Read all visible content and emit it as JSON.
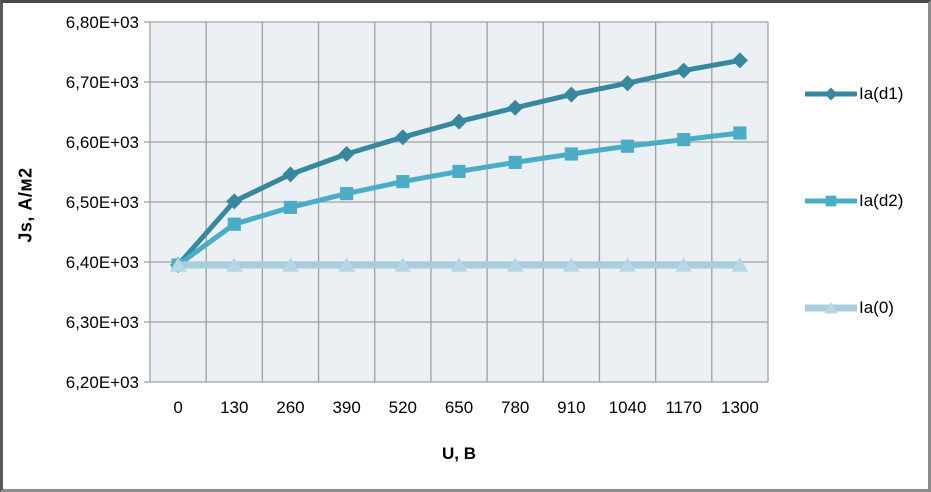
{
  "chart_data": {
    "type": "line",
    "title": "",
    "xlabel": "U, В",
    "ylabel": "Js, А/м2",
    "x_tick_labels": [
      "0",
      "130",
      "260",
      "390",
      "520",
      "650",
      "780",
      "910",
      "1040",
      "1170",
      "1300"
    ],
    "x_values": [
      0,
      130,
      260,
      390,
      520,
      650,
      780,
      910,
      1040,
      1170,
      1300
    ],
    "y_tick_labels": [
      "6,80E+03",
      "6,70E+03",
      "6,60E+03",
      "6,50E+03",
      "6,40E+03",
      "6,30E+03",
      "6,20E+03"
    ],
    "ylim": [
      6200,
      6800
    ],
    "y_step": 100,
    "grid": true,
    "legend_position": "right",
    "series": [
      {
        "name": "Ia(d1)",
        "marker": "diamond",
        "color": "#35889E",
        "marker_color": "#35889E",
        "line_width": 5,
        "values": [
          6395,
          6501,
          6546,
          6580,
          6608,
          6634,
          6657,
          6679,
          6698,
          6719,
          6736
        ]
      },
      {
        "name": "Ia(d2)",
        "marker": "square",
        "color": "#4BACC6",
        "marker_color": "#4BACC6",
        "line_width": 5,
        "values": [
          6395,
          6463,
          6491,
          6514,
          6534,
          6551,
          6566,
          6580,
          6593,
          6604,
          6615
        ]
      },
      {
        "name": "Ia(0)",
        "marker": "triangle",
        "color": "#A8CEDC",
        "marker_color": "#B6D8E2",
        "line_width": 7,
        "values": [
          6395,
          6395,
          6395,
          6395,
          6395,
          6395,
          6395,
          6395,
          6395,
          6395,
          6395
        ]
      }
    ],
    "colors": {
      "plot_bg": "#EAF0F4",
      "grid": "#A0A0A0",
      "axis": "#A0A0A0",
      "canvas_bg": "#FFFFFF",
      "frame_border": "#8C8C8C",
      "text": "#000000"
    }
  }
}
